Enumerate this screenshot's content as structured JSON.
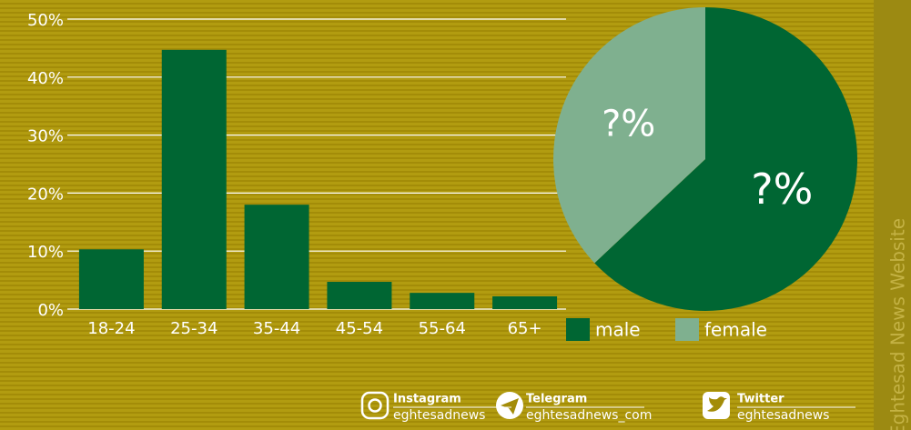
{
  "chart_data": [
    {
      "type": "bar",
      "categories": [
        "18-24",
        "25-34",
        "35-44",
        "45-54",
        "55-64",
        "65+"
      ],
      "values": [
        10.3,
        44.7,
        18,
        4.7,
        2.8,
        2.2
      ],
      "color": "#006633",
      "ylim": [
        0,
        50
      ],
      "yticks": [
        {
          "value": 0,
          "label": "0%"
        },
        {
          "value": 10,
          "label": "10%"
        },
        {
          "value": 20,
          "label": "20%"
        },
        {
          "value": 30,
          "label": "30%"
        },
        {
          "value": 40,
          "label": "40%"
        },
        {
          "value": 50,
          "label": "50%"
        }
      ],
      "grid": true
    },
    {
      "type": "pie",
      "categories": [
        "male",
        "female"
      ],
      "values": [
        63,
        37
      ],
      "value_labels": [
        "?%",
        "?%"
      ],
      "colors": [
        "#006633",
        "#7fb08f"
      ]
    }
  ],
  "footer": [
    {
      "name": "Instagram",
      "handle": "eghtesadnews"
    },
    {
      "name": "Telegram",
      "handle": "eghtesadnews_com"
    },
    {
      "name": "Twitter",
      "handle": "eghtesadnews"
    }
  ],
  "side_text": "Eghtesad News Website"
}
